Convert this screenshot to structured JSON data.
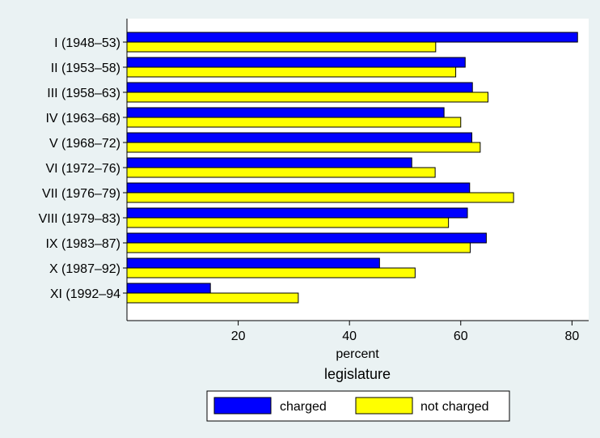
{
  "chart_data": {
    "type": "bar",
    "orientation": "horizontal",
    "categories": [
      "I (1948–53)",
      "II (1953–58)",
      "III (1958–63)",
      "IV (1963–68)",
      "V (1968–72)",
      "VI (1972–76)",
      "VII (1976–79)",
      "VIII (1979–83)",
      "IX (1983–87)",
      "X (1987–92)",
      "XI (1992–94"
    ],
    "series": [
      {
        "name": "charged",
        "color": "#0000ff",
        "values": [
          81,
          60.8,
          62.1,
          57,
          62,
          51.2,
          61.6,
          61.2,
          64.6,
          45.4,
          15
        ]
      },
      {
        "name": "not charged",
        "color": "#ffff00",
        "values": [
          55.5,
          59.1,
          64.9,
          60,
          63.5,
          55.4,
          69.5,
          57.8,
          61.7,
          51.8,
          30.8
        ]
      }
    ],
    "xlabel": "percent",
    "group_title": "legislature",
    "xlim": [
      0,
      83
    ],
    "xticks": [
      20,
      40,
      60,
      80
    ],
    "grid": false,
    "legend_position": "bottom"
  },
  "colors": {
    "background": "#eaf2f3",
    "plot_background": "#ffffff",
    "bar_outline": "#000000"
  }
}
